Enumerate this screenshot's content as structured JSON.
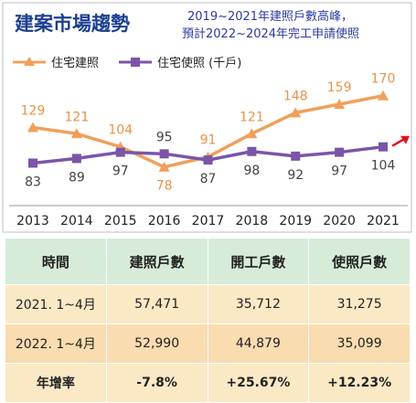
{
  "chart_data": {
    "type": "line",
    "title": "建案市場趨勢",
    "subtitle_lines": [
      "2019~2021年建照戶數高峰，",
      "預計2022~2024年完工申請使照"
    ],
    "x": [
      "2013",
      "2014",
      "2015",
      "2016",
      "2017",
      "2018",
      "2019",
      "2020",
      "2021"
    ],
    "series": [
      {
        "name": "住宅建照",
        "color": "#f0a05a",
        "values": [
          129,
          121,
          104,
          78,
          91,
          121,
          148,
          159,
          170
        ]
      },
      {
        "name": "住宅使照 (千戶)",
        "color": "#7a55a8",
        "values": [
          83,
          89,
          97,
          95,
          87,
          98,
          92,
          97,
          104
        ]
      }
    ],
    "ylim": [
      60,
      185
    ],
    "grid": false,
    "legend_position": "top-left",
    "trend_arrow_color": "#e0161c"
  },
  "table": {
    "headers": [
      "時間",
      "建照戶數",
      "開工戶數",
      "使照戶數"
    ],
    "rows": [
      [
        "2021. 1~4月",
        "57,471",
        "35,712",
        "31,275"
      ],
      [
        "2022. 1~4月",
        "52,990",
        "44,879",
        "35,099"
      ],
      [
        "年增率",
        "-7.8%",
        "+25.67%",
        "+12.23%"
      ]
    ]
  },
  "colors": {
    "title": "#1d3f8f",
    "subtitle": "#2a3aa0",
    "table_header_bg": "#d6ecd9",
    "table_row_bg": "#fbe9c6",
    "negative": "#1f9a36",
    "positive": "#e0161c"
  }
}
